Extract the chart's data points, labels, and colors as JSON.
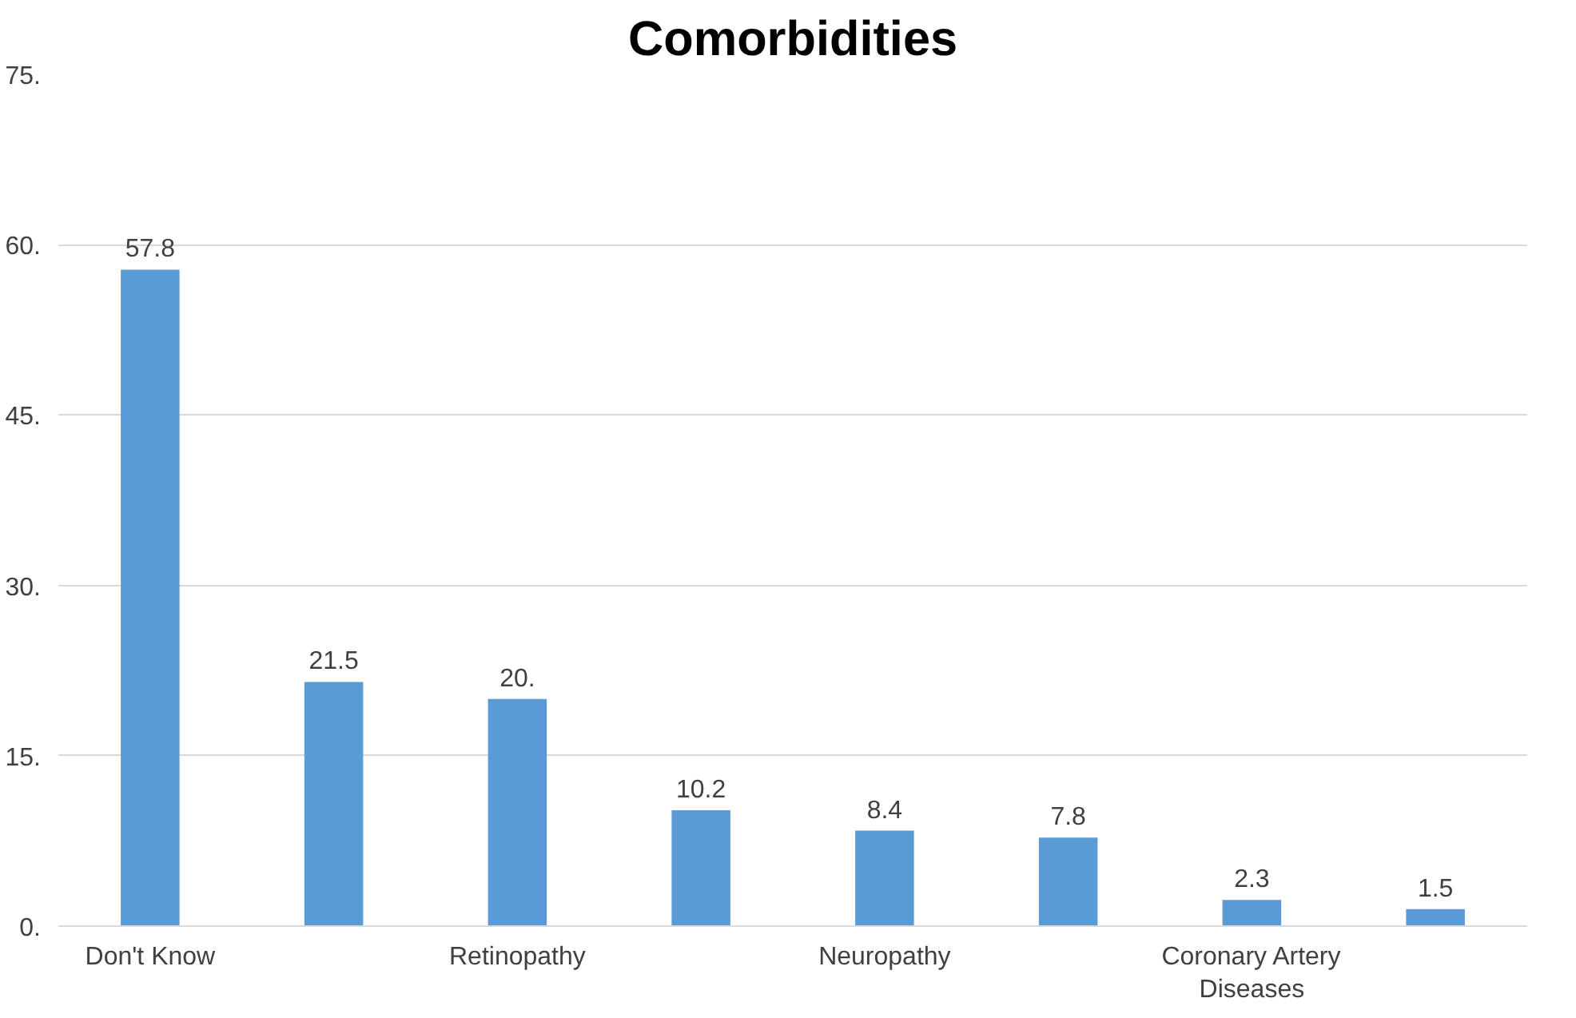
{
  "chart_data": {
    "type": "bar",
    "title": "Comorbidities",
    "categories": [
      "Don't Know",
      null,
      "Retinopathy",
      null,
      "Neuropathy",
      null,
      "Coronary Artery Diseases",
      null
    ],
    "values": [
      57.8,
      21.5,
      20,
      10.2,
      8.4,
      7.8,
      2.3,
      1.5
    ],
    "value_labels": [
      "57.8",
      "21.5",
      "20.",
      "10.2",
      "8.4",
      "7.8",
      "2.3",
      "1.5"
    ],
    "color": "#5b9bd5",
    "ylim": [
      0,
      75
    ],
    "yticks": [
      {
        "value": 0,
        "label": "0."
      },
      {
        "value": 15,
        "label": "15."
      },
      {
        "value": 30,
        "label": "30."
      },
      {
        "value": 45,
        "label": "45."
      },
      {
        "value": 60,
        "label": "60."
      },
      {
        "value": 75,
        "label": "75."
      }
    ],
    "grid": "y"
  }
}
